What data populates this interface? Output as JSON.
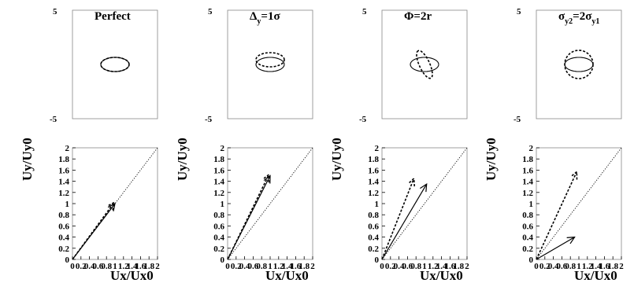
{
  "chart_data": [
    {
      "type": "scatter",
      "title": "Perfect",
      "ylim": [
        -5,
        5
      ],
      "yticks": [
        "5",
        "-5"
      ],
      "series": [
        {
          "style": "solid",
          "ellipse": {
            "cx": 0,
            "cy": 0,
            "rx": 3.0,
            "ry": 1.5,
            "angle": 0
          }
        },
        {
          "style": "dashed",
          "ellipse": {
            "cx": 0,
            "cy": 0,
            "rx": 3.0,
            "ry": 1.5,
            "angle": 0
          }
        }
      ]
    },
    {
      "type": "scatter",
      "title": "Δy=1σ",
      "ylim": [
        -5,
        5
      ],
      "yticks": [
        "5",
        "-5"
      ],
      "series": [
        {
          "style": "solid",
          "ellipse": {
            "cx": 0,
            "cy": 0,
            "rx": 3.0,
            "ry": 1.5,
            "angle": 0
          }
        },
        {
          "style": "dashed",
          "ellipse": {
            "cx": 0,
            "cy": 1.0,
            "rx": 3.0,
            "ry": 1.5,
            "angle": 0
          }
        }
      ]
    },
    {
      "type": "scatter",
      "title": "Φ=2r",
      "ylim": [
        -5,
        5
      ],
      "yticks": [
        "5",
        "-5"
      ],
      "series": [
        {
          "style": "solid",
          "ellipse": {
            "cx": 0,
            "cy": 0,
            "rx": 3.0,
            "ry": 1.5,
            "angle": 0
          }
        },
        {
          "style": "dashed",
          "ellipse": {
            "cx": 0,
            "cy": 0,
            "rx": 3.2,
            "ry": 1.1,
            "angle": 114.6
          }
        }
      ]
    },
    {
      "type": "scatter",
      "title": "σy2=2σy1",
      "ylim": [
        -5,
        5
      ],
      "yticks": [
        "5",
        "-5"
      ],
      "series": [
        {
          "style": "solid",
          "ellipse": {
            "cx": 0,
            "cy": 0,
            "rx": 3.0,
            "ry": 1.5,
            "angle": 0
          }
        },
        {
          "style": "dashed",
          "ellipse": {
            "cx": 0,
            "cy": 0,
            "rx": 3.0,
            "ry": 3.0,
            "angle": 0
          }
        }
      ]
    },
    {
      "type": "line",
      "xlabel": "Ux/Ux0",
      "ylabel": "Uy/Uy0",
      "xlim": [
        0,
        2
      ],
      "ylim": [
        0,
        2
      ],
      "yticks": [
        "0",
        "0.2",
        "0.4",
        "0.6",
        "0.8",
        "1",
        "1.2",
        "1.4",
        "1.6",
        "1.8",
        "2"
      ],
      "xticks": [
        "0",
        "0.2",
        "0.4",
        "0.6",
        "0.8",
        "1",
        "1.2",
        "1.4",
        "1.6",
        "1.8",
        "2"
      ],
      "diagonal": true,
      "series": [
        {
          "style": "solid",
          "vector": [
            1.0,
            1.0
          ]
        },
        {
          "style": "dashed",
          "vector": [
            0.98,
            1.02
          ]
        }
      ]
    },
    {
      "type": "line",
      "xlabel": "Ux/Ux0",
      "ylabel": "Uy/Uy0",
      "xlim": [
        0,
        2
      ],
      "ylim": [
        0,
        2
      ],
      "yticks": [
        "0",
        "0.2",
        "0.4",
        "0.6",
        "0.8",
        "1",
        "1.2",
        "1.4",
        "1.6",
        "1.8",
        "2"
      ],
      "xticks": [
        "0",
        "0.2",
        "0.4",
        "0.6",
        "0.8",
        "1",
        "1.2",
        "1.4",
        "1.6",
        "1.8",
        "2"
      ],
      "diagonal": true,
      "series": [
        {
          "style": "solid",
          "vector": [
            1.0,
            1.5
          ]
        },
        {
          "style": "dashed",
          "vector": [
            0.97,
            1.52
          ]
        }
      ]
    },
    {
      "type": "line",
      "xlabel": "Ux/Ux0",
      "ylabel": "Uy/Uy0",
      "xlim": [
        0,
        2
      ],
      "ylim": [
        0,
        2
      ],
      "yticks": [
        "0",
        "0.2",
        "0.4",
        "0.6",
        "0.8",
        "1",
        "1.2",
        "1.4",
        "1.6",
        "1.8",
        "2"
      ],
      "xticks": [
        "0",
        "0.2",
        "0.4",
        "0.6",
        "0.8",
        "1",
        "1.2",
        "1.4",
        "1.6",
        "1.8",
        "2"
      ],
      "diagonal": true,
      "series": [
        {
          "style": "solid",
          "vector": [
            1.05,
            1.35
          ]
        },
        {
          "style": "dashed",
          "vector": [
            0.75,
            1.45
          ]
        }
      ]
    },
    {
      "type": "line",
      "xlabel": "Ux/Ux0",
      "ylabel": "Uy/Uy0",
      "xlim": [
        0,
        2
      ],
      "ylim": [
        0,
        2
      ],
      "yticks": [
        "0",
        "0.2",
        "0.4",
        "0.6",
        "0.8",
        "1",
        "1.2",
        "1.4",
        "1.6",
        "1.8",
        "2"
      ],
      "xticks": [
        "0",
        "0.2",
        "0.4",
        "0.6",
        "0.8",
        "1",
        "1.2",
        "1.4",
        "1.6",
        "1.8",
        "2"
      ],
      "diagonal": true,
      "series": [
        {
          "style": "solid",
          "vector": [
            0.9,
            0.4
          ]
        },
        {
          "style": "dashed",
          "vector": [
            0.95,
            1.57
          ]
        }
      ]
    }
  ]
}
